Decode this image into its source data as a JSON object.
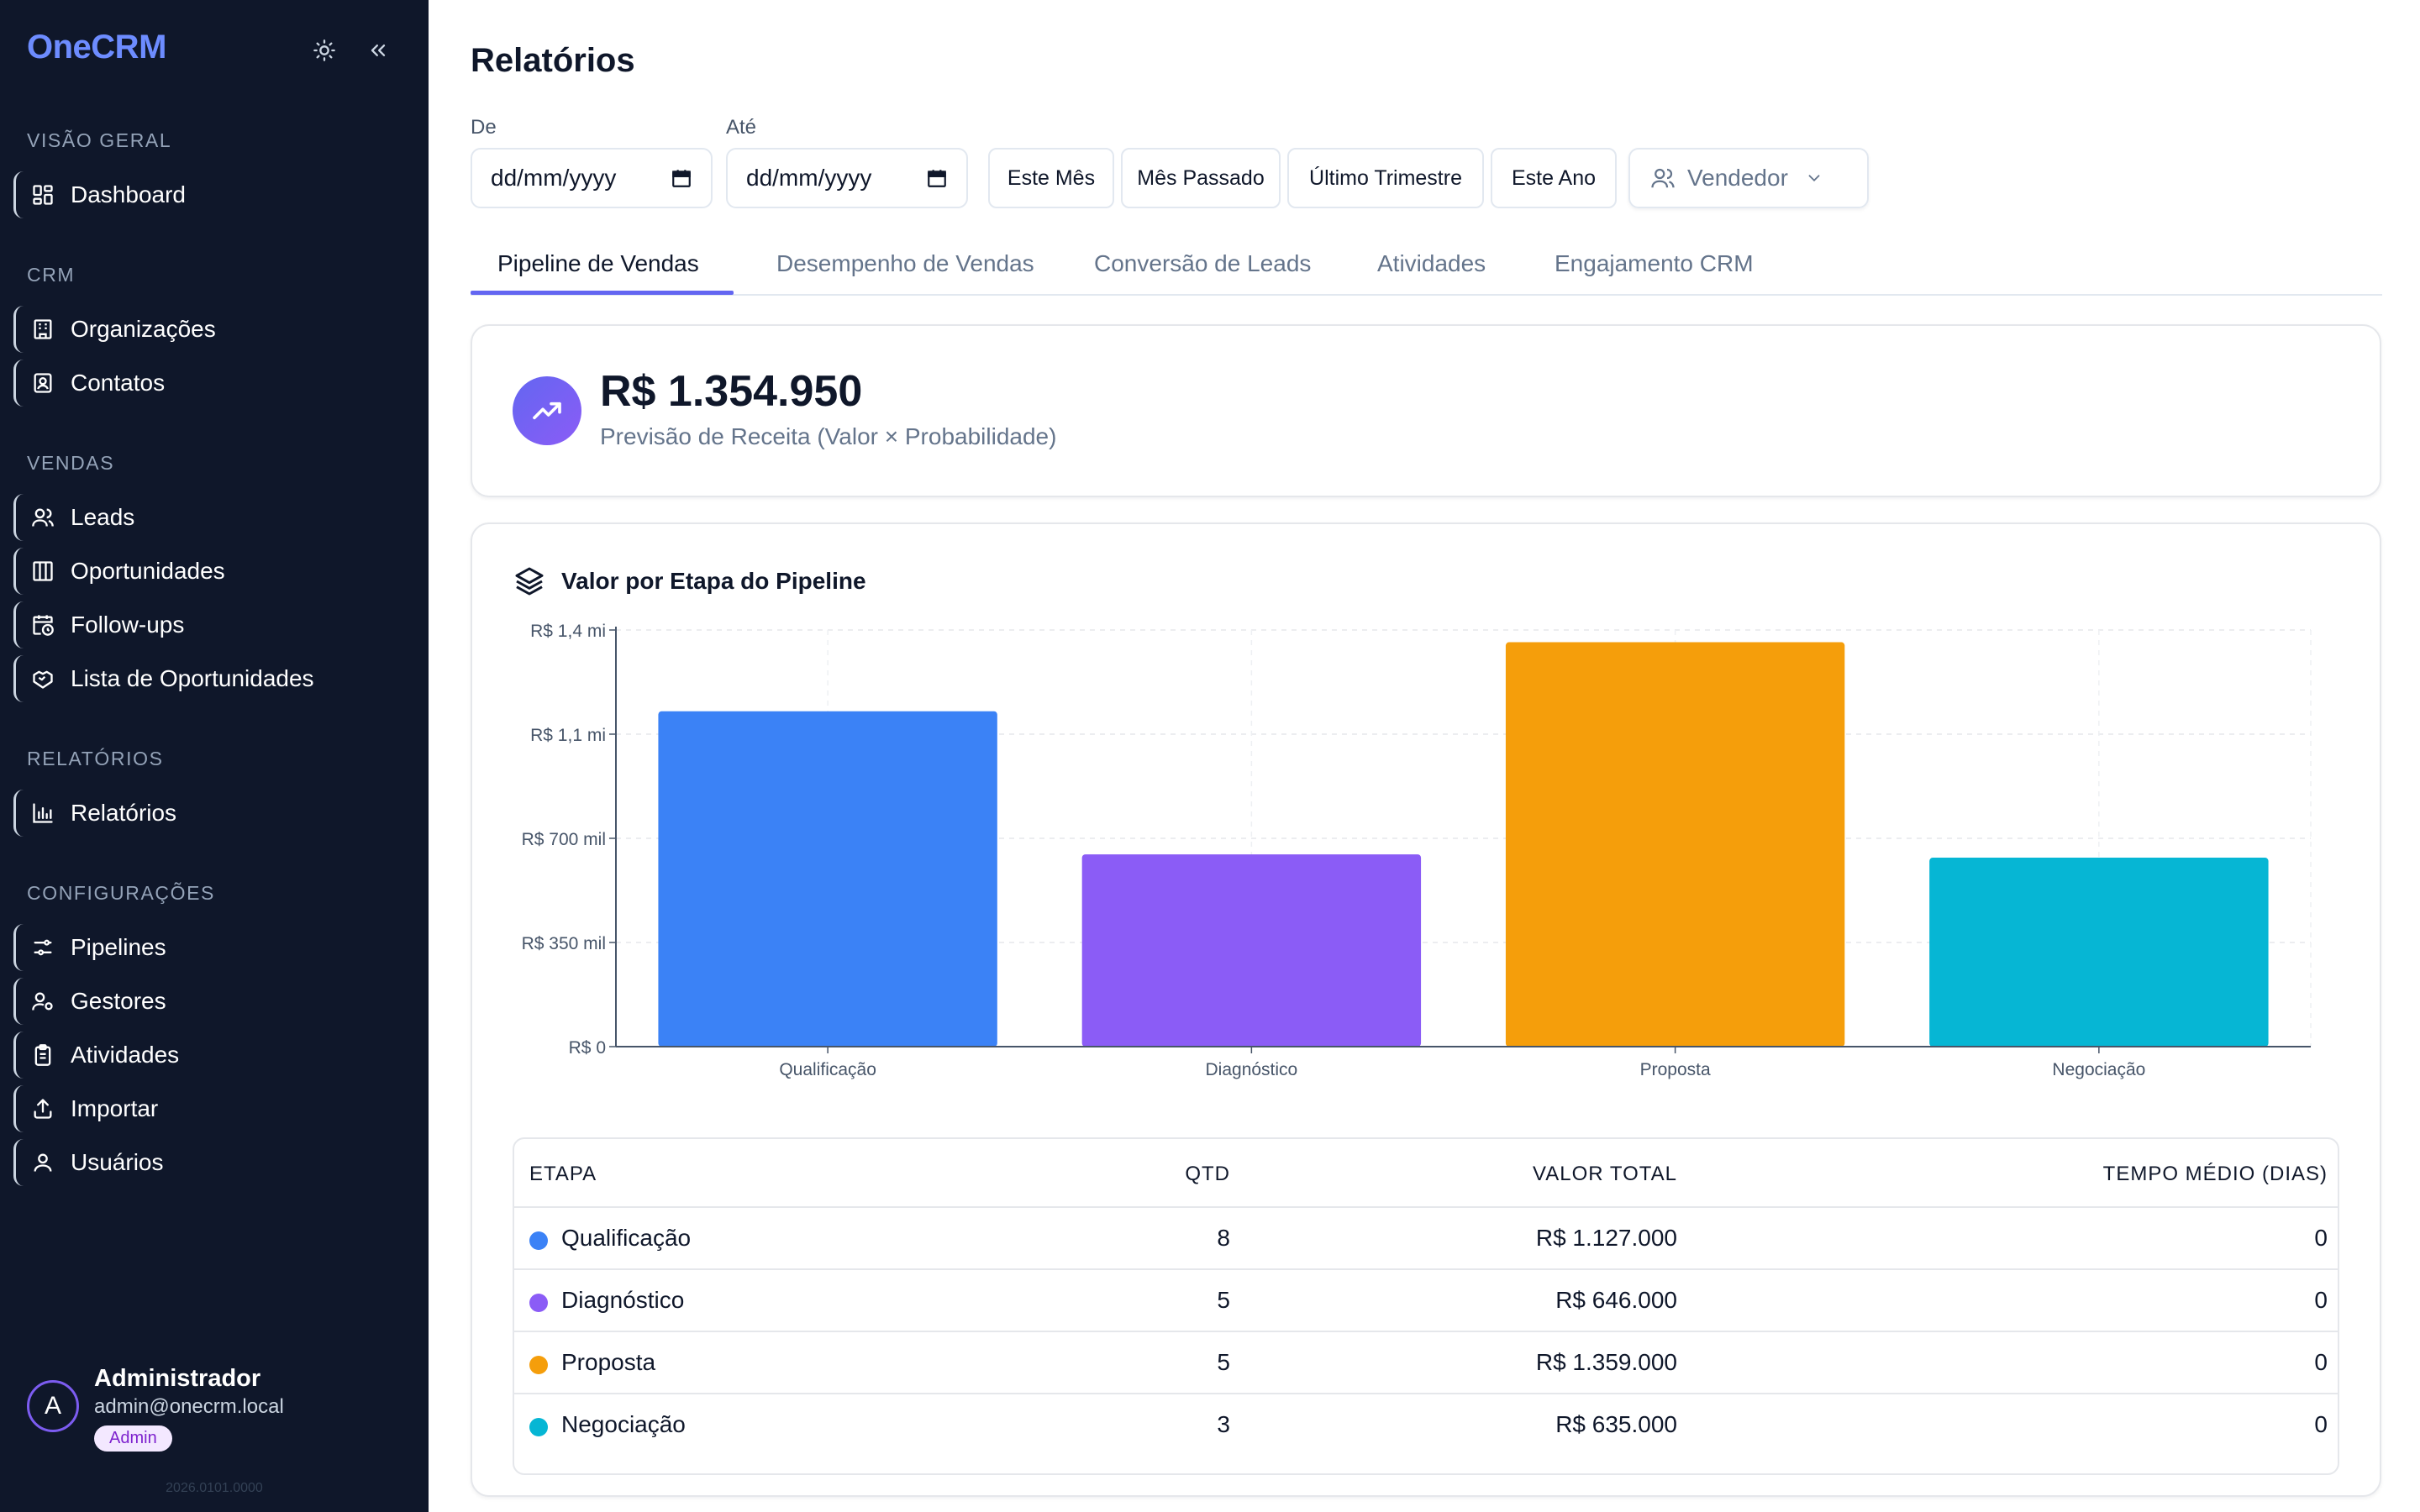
{
  "app": {
    "brand": "OneCRM",
    "version": "2026.0101.0000"
  },
  "sidebar": {
    "sections": [
      {
        "label": "VISÃO GERAL",
        "items": [
          {
            "label": "Dashboard",
            "icon": "layout-grid-icon"
          }
        ]
      },
      {
        "label": "CRM",
        "items": [
          {
            "label": "Organizações",
            "icon": "building-icon"
          },
          {
            "label": "Contatos",
            "icon": "contact-icon"
          }
        ]
      },
      {
        "label": "VENDAS",
        "items": [
          {
            "label": "Leads",
            "icon": "users-icon"
          },
          {
            "label": "Oportunidades",
            "icon": "columns-icon"
          },
          {
            "label": "Follow-ups",
            "icon": "calendar-clock-icon"
          },
          {
            "label": "Lista de Oportunidades",
            "icon": "handshake-icon"
          }
        ]
      },
      {
        "label": "RELATÓRIOS",
        "items": [
          {
            "label": "Relatórios",
            "icon": "bar-chart-icon"
          }
        ]
      },
      {
        "label": "CONFIGURAÇÕES",
        "items": [
          {
            "label": "Pipelines",
            "icon": "sliders-icon"
          },
          {
            "label": "Gestores",
            "icon": "user-cog-icon"
          },
          {
            "label": "Atividades",
            "icon": "clipboard-icon"
          },
          {
            "label": "Importar",
            "icon": "upload-icon"
          },
          {
            "label": "Usuários",
            "icon": "user-icon"
          }
        ]
      }
    ],
    "user": {
      "initial": "A",
      "name": "Administrador",
      "email": "admin@onecrm.local",
      "role": "Admin"
    }
  },
  "page": {
    "title": "Relatórios",
    "filters": {
      "from_label": "De",
      "to_label": "Até",
      "from_placeholder": "dd/mm/yyyy",
      "to_placeholder": "dd/mm/yyyy",
      "quick": [
        "Este Mês",
        "Mês Passado",
        "Último Trimestre",
        "Este Ano"
      ],
      "vendor": "Vendedor"
    },
    "tabs": [
      "Pipeline de Vendas",
      "Desempenho de Vendas",
      "Conversão de Leads",
      "Atividades",
      "Engajamento CRM"
    ],
    "active_tab": "Pipeline de Vendas",
    "kpi": {
      "value": "R$ 1.354.950",
      "label": "Previsão de Receita (Valor × Probabilidade)"
    },
    "chart_title": "Valor por Etapa do Pipeline",
    "table": {
      "headers": [
        "ETAPA",
        "QTD",
        "VALOR TOTAL",
        "TEMPO MÉDIO (DIAS)"
      ],
      "rows": [
        {
          "stage": "Qualificação",
          "qty": "8",
          "total": "R$ 1.127.000",
          "avg_days": "0",
          "color": "#3b82f6"
        },
        {
          "stage": "Diagnóstico",
          "qty": "5",
          "total": "R$ 646.000",
          "avg_days": "0",
          "color": "#8b5cf6"
        },
        {
          "stage": "Proposta",
          "qty": "5",
          "total": "R$ 1.359.000",
          "avg_days": "0",
          "color": "#f59e0b"
        },
        {
          "stage": "Negociação",
          "qty": "3",
          "total": "R$ 635.000",
          "avg_days": "0",
          "color": "#06b6d4"
        }
      ]
    }
  },
  "chart_data": {
    "type": "bar",
    "title": "Valor por Etapa do Pipeline",
    "categories": [
      "Qualificação",
      "Diagnóstico",
      "Proposta",
      "Negociação"
    ],
    "values": [
      1127000,
      646000,
      1359000,
      635000
    ],
    "colors": [
      "#3b82f6",
      "#8b5cf6",
      "#f59e0b",
      "#06b6d4"
    ],
    "ylim": [
      0,
      1400000
    ],
    "y_ticks": [
      {
        "value": 0,
        "label": "R$ 0"
      },
      {
        "value": 350000,
        "label": "R$ 350 mil"
      },
      {
        "value": 700000,
        "label": "R$ 700 mil"
      },
      {
        "value": 1050000,
        "label": "R$ 1,1 mi"
      },
      {
        "value": 1400000,
        "label": "R$ 1,4 mi"
      }
    ],
    "grid": true,
    "xlabel": "",
    "ylabel": ""
  }
}
